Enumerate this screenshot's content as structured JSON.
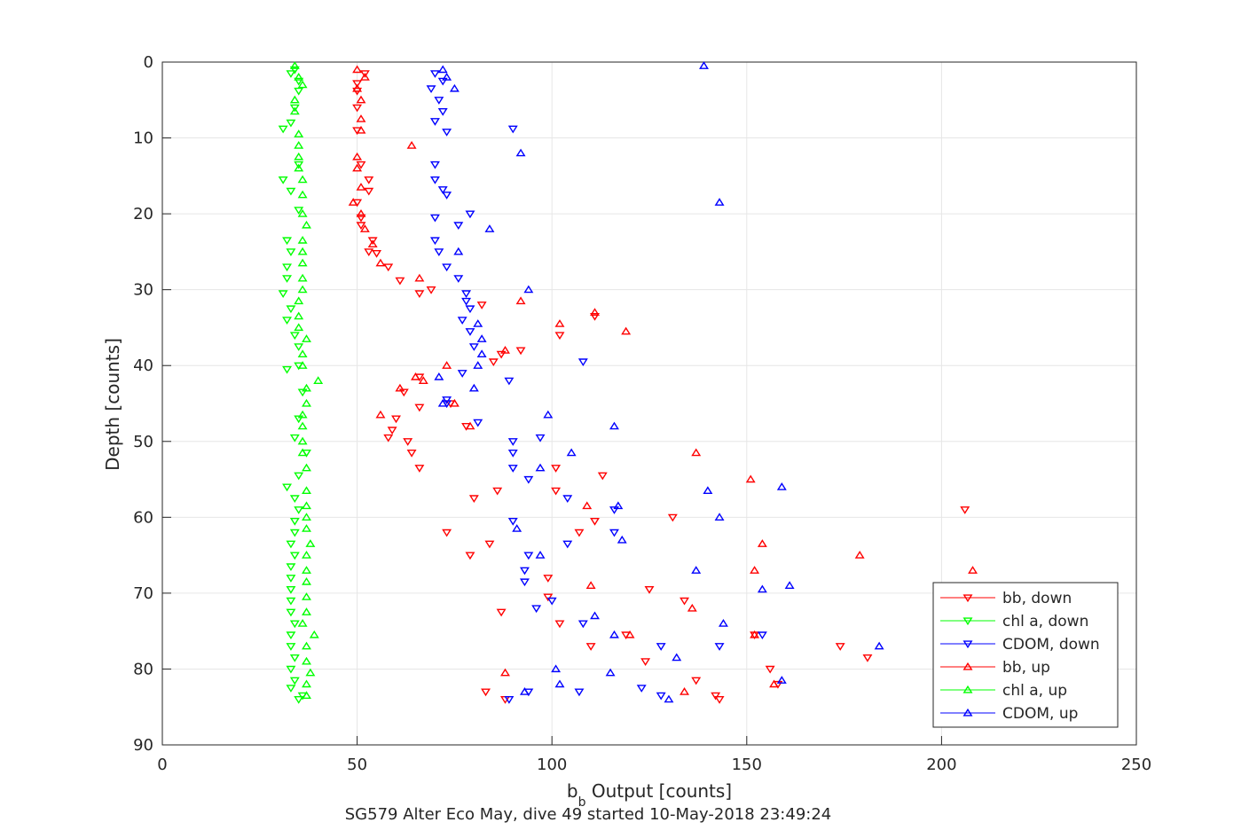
{
  "figure": {
    "caption": "SG579 Alter Eco May, dive 49 started 10-May-2018 23:49:24",
    "background": "#ffffff"
  },
  "chart_data": {
    "type": "scatter",
    "title": "",
    "xlabel_main": "b",
    "xlabel_sub": "b",
    "xlabel_rest": " Output [counts]",
    "ylabel": "Depth [counts]",
    "xlim": [
      0,
      250
    ],
    "ylim": [
      0,
      90
    ],
    "y_reversed": true,
    "grid": true,
    "legend_position": "bottom-right",
    "xticks": [
      0,
      50,
      100,
      150,
      200,
      250
    ],
    "yticks": [
      0,
      10,
      20,
      30,
      40,
      50,
      60,
      70,
      80,
      90
    ],
    "xtick_labels": [
      "0",
      "50",
      "100",
      "150",
      "200",
      "250"
    ],
    "ytick_labels": [
      "0",
      "10",
      "20",
      "30",
      "40",
      "50",
      "60",
      "70",
      "80",
      "90"
    ],
    "series": [
      {
        "name": "bb, down",
        "color": "#ff0000",
        "marker": "triangle-down",
        "points": [
          [
            52,
            1.5
          ],
          [
            50,
            2.8
          ],
          [
            50,
            3.8
          ],
          [
            50,
            6
          ],
          [
            50,
            9
          ],
          [
            51,
            13.5
          ],
          [
            53,
            15.5
          ],
          [
            53,
            17
          ],
          [
            50,
            18.5
          ],
          [
            51,
            20.5
          ],
          [
            51,
            21.5
          ],
          [
            54,
            23.5
          ],
          [
            53,
            25
          ],
          [
            55,
            25.2
          ],
          [
            58,
            27
          ],
          [
            61,
            28.8
          ],
          [
            66,
            30.5
          ],
          [
            69,
            30
          ],
          [
            82,
            32
          ],
          [
            92,
            38
          ],
          [
            87,
            38.5
          ],
          [
            85,
            39.5
          ],
          [
            66,
            41.5
          ],
          [
            62,
            43.5
          ],
          [
            66,
            45.5
          ],
          [
            74,
            45
          ],
          [
            60,
            47
          ],
          [
            59,
            48.5
          ],
          [
            58,
            49.5
          ],
          [
            63,
            50
          ],
          [
            64,
            51.5
          ],
          [
            66,
            53.5
          ],
          [
            101,
            53.5
          ],
          [
            113,
            54.5
          ],
          [
            86,
            56.5
          ],
          [
            101,
            56.5
          ],
          [
            80,
            57.5
          ],
          [
            206,
            59
          ],
          [
            131,
            60
          ],
          [
            111,
            60.5
          ],
          [
            107,
            62
          ],
          [
            73,
            62
          ],
          [
            84,
            63.5
          ],
          [
            79,
            65
          ],
          [
            99,
            68
          ],
          [
            99,
            70.5
          ],
          [
            125,
            69.5
          ],
          [
            134,
            71
          ],
          [
            87,
            72.5
          ],
          [
            102,
            74
          ],
          [
            119,
            75.5
          ],
          [
            110,
            77
          ],
          [
            174,
            77
          ],
          [
            181,
            78.5
          ],
          [
            124,
            79
          ],
          [
            156,
            80
          ],
          [
            137,
            81.5
          ],
          [
            158,
            82
          ],
          [
            142,
            83.5
          ],
          [
            143,
            84
          ],
          [
            83,
            83
          ],
          [
            88,
            84
          ],
          [
            111,
            33.5
          ],
          [
            102,
            36
          ],
          [
            78,
            48
          ],
          [
            152,
            75.5
          ]
        ]
      },
      {
        "name": "chl a, down",
        "color": "#00ff00",
        "marker": "triangle-down",
        "points": [
          [
            34,
            1
          ],
          [
            33,
            1.5
          ],
          [
            35,
            2.5
          ],
          [
            35,
            3.8
          ],
          [
            34,
            6
          ],
          [
            33,
            8
          ],
          [
            31,
            8.8
          ],
          [
            35,
            13.5
          ],
          [
            31,
            15.5
          ],
          [
            33,
            17
          ],
          [
            35,
            19.5
          ],
          [
            32,
            23.5
          ],
          [
            33,
            25
          ],
          [
            32,
            27
          ],
          [
            32,
            28.5
          ],
          [
            31,
            30.5
          ],
          [
            33,
            32.5
          ],
          [
            32,
            34
          ],
          [
            34,
            36
          ],
          [
            35,
            37.5
          ],
          [
            35,
            40
          ],
          [
            32,
            40.5
          ],
          [
            36,
            43.5
          ],
          [
            35,
            47
          ],
          [
            34,
            49.5
          ],
          [
            37,
            51.5
          ],
          [
            35,
            54.5
          ],
          [
            32,
            56
          ],
          [
            34,
            57.5
          ],
          [
            35,
            59
          ],
          [
            34,
            60.5
          ],
          [
            34,
            62
          ],
          [
            33,
            63.5
          ],
          [
            34,
            65
          ],
          [
            33,
            66.5
          ],
          [
            33,
            68
          ],
          [
            33,
            69.5
          ],
          [
            33,
            71
          ],
          [
            33,
            72.5
          ],
          [
            34,
            74
          ],
          [
            33,
            75.5
          ],
          [
            33,
            77
          ],
          [
            34,
            78.5
          ],
          [
            33,
            80
          ],
          [
            34,
            81.5
          ],
          [
            33,
            82.5
          ],
          [
            36,
            83.5
          ],
          [
            35,
            84
          ]
        ]
      },
      {
        "name": "CDOM, down",
        "color": "#0000ff",
        "marker": "triangle-down",
        "points": [
          [
            70,
            1.5
          ],
          [
            72,
            2.5
          ],
          [
            69,
            3.5
          ],
          [
            71,
            5
          ],
          [
            72,
            6.5
          ],
          [
            70,
            7.8
          ],
          [
            73,
            9.2
          ],
          [
            90,
            8.8
          ],
          [
            70,
            13.5
          ],
          [
            70,
            15.5
          ],
          [
            72,
            16.8
          ],
          [
            73,
            17.5
          ],
          [
            79,
            20
          ],
          [
            70,
            20.5
          ],
          [
            76,
            21.5
          ],
          [
            70,
            23.5
          ],
          [
            71,
            25
          ],
          [
            73,
            27
          ],
          [
            76,
            28.5
          ],
          [
            78,
            30.5
          ],
          [
            78,
            31.5
          ],
          [
            79,
            32.5
          ],
          [
            77,
            34
          ],
          [
            79,
            35.5
          ],
          [
            80,
            37.5
          ],
          [
            108,
            39.5
          ],
          [
            77,
            41
          ],
          [
            89,
            42
          ],
          [
            73,
            45
          ],
          [
            73,
            44.5
          ],
          [
            81,
            47.5
          ],
          [
            97,
            49.5
          ],
          [
            90,
            50
          ],
          [
            90,
            51.5
          ],
          [
            90,
            53.5
          ],
          [
            94,
            55
          ],
          [
            104,
            57.5
          ],
          [
            116,
            59
          ],
          [
            90,
            60.5
          ],
          [
            116,
            62
          ],
          [
            104,
            63.5
          ],
          [
            94,
            65
          ],
          [
            93,
            67
          ],
          [
            93,
            68.5
          ],
          [
            100,
            71
          ],
          [
            96,
            72
          ],
          [
            108,
            74
          ],
          [
            128,
            77
          ],
          [
            143,
            77
          ],
          [
            154,
            75.5
          ],
          [
            123,
            82.5
          ],
          [
            107,
            83
          ],
          [
            89,
            84
          ],
          [
            128,
            83.5
          ],
          [
            94,
            83
          ]
        ]
      },
      {
        "name": "bb, up",
        "color": "#ff0000",
        "marker": "triangle-up",
        "points": [
          [
            50,
            1
          ],
          [
            52,
            2
          ],
          [
            50,
            3.5
          ],
          [
            51,
            5
          ],
          [
            51,
            7.5
          ],
          [
            51,
            9
          ],
          [
            64,
            11
          ],
          [
            50,
            12.5
          ],
          [
            50,
            14
          ],
          [
            51,
            16.5
          ],
          [
            49,
            18.5
          ],
          [
            51,
            20
          ],
          [
            52,
            22
          ],
          [
            54,
            24
          ],
          [
            56,
            26.5
          ],
          [
            66,
            28.5
          ],
          [
            92,
            31.5
          ],
          [
            111,
            33
          ],
          [
            102,
            34.5
          ],
          [
            119,
            35.5
          ],
          [
            88,
            38
          ],
          [
            73,
            40
          ],
          [
            67,
            42
          ],
          [
            65,
            41.5
          ],
          [
            61,
            43
          ],
          [
            56,
            46.5
          ],
          [
            137,
            51.5
          ],
          [
            151,
            55
          ],
          [
            109,
            58.5
          ],
          [
            154,
            63.5
          ],
          [
            179,
            65
          ],
          [
            152,
            67
          ],
          [
            208,
            67
          ],
          [
            110,
            69
          ],
          [
            136,
            72
          ],
          [
            120,
            75.5
          ],
          [
            152,
            75.5
          ],
          [
            88,
            80.5
          ],
          [
            134,
            83
          ],
          [
            157,
            82
          ],
          [
            79,
            48
          ],
          [
            75,
            45
          ]
        ]
      },
      {
        "name": "chl a, up",
        "color": "#00ff00",
        "marker": "triangle-up",
        "points": [
          [
            34,
            0.5
          ],
          [
            35,
            2
          ],
          [
            36,
            3
          ],
          [
            34,
            5
          ],
          [
            34,
            6.5
          ],
          [
            35,
            9.5
          ],
          [
            35,
            11
          ],
          [
            35,
            12.5
          ],
          [
            35,
            14
          ],
          [
            36,
            15.5
          ],
          [
            36,
            17.5
          ],
          [
            36,
            20
          ],
          [
            37,
            21.5
          ],
          [
            36,
            23.5
          ],
          [
            36,
            25
          ],
          [
            36,
            26.5
          ],
          [
            36,
            28.5
          ],
          [
            36,
            30
          ],
          [
            35,
            31.5
          ],
          [
            35,
            33.5
          ],
          [
            35,
            35
          ],
          [
            37,
            36.5
          ],
          [
            36,
            38.5
          ],
          [
            36,
            40
          ],
          [
            40,
            42
          ],
          [
            37,
            43
          ],
          [
            37,
            45
          ],
          [
            36,
            46.5
          ],
          [
            36,
            48
          ],
          [
            36,
            50
          ],
          [
            36,
            51.5
          ],
          [
            37,
            53.5
          ],
          [
            37,
            56.5
          ],
          [
            37,
            58.5
          ],
          [
            37,
            60
          ],
          [
            37,
            61.5
          ],
          [
            38,
            63.5
          ],
          [
            37,
            65
          ],
          [
            37,
            67
          ],
          [
            37,
            68.5
          ],
          [
            37,
            70.5
          ],
          [
            37,
            72.5
          ],
          [
            36,
            74
          ],
          [
            39,
            75.5
          ],
          [
            37,
            77
          ],
          [
            37,
            79
          ],
          [
            38,
            80.5
          ],
          [
            37,
            82
          ],
          [
            37,
            83.5
          ]
        ]
      },
      {
        "name": "CDOM, up",
        "color": "#0000ff",
        "marker": "triangle-up",
        "points": [
          [
            139,
            0.5
          ],
          [
            72,
            1
          ],
          [
            73,
            2
          ],
          [
            75,
            3.5
          ],
          [
            92,
            12
          ],
          [
            143,
            18.5
          ],
          [
            84,
            22
          ],
          [
            76,
            25
          ],
          [
            94,
            30
          ],
          [
            81,
            34.5
          ],
          [
            82,
            36.5
          ],
          [
            82,
            38.5
          ],
          [
            81,
            40
          ],
          [
            71,
            41.5
          ],
          [
            80,
            43
          ],
          [
            72,
            45
          ],
          [
            99,
            46.5
          ],
          [
            116,
            48
          ],
          [
            105,
            51.5
          ],
          [
            97,
            53.5
          ],
          [
            140,
            56.5
          ],
          [
            159,
            56
          ],
          [
            117,
            58.5
          ],
          [
            143,
            60
          ],
          [
            91,
            61.5
          ],
          [
            118,
            63
          ],
          [
            97,
            65
          ],
          [
            137,
            67
          ],
          [
            154,
            69.5
          ],
          [
            161,
            69
          ],
          [
            111,
            73
          ],
          [
            144,
            74
          ],
          [
            116,
            75.5
          ],
          [
            184,
            77
          ],
          [
            132,
            78.5
          ],
          [
            101,
            80
          ],
          [
            115,
            80.5
          ],
          [
            159,
            81.5
          ],
          [
            102,
            82
          ],
          [
            93,
            83
          ],
          [
            130,
            84
          ]
        ]
      }
    ]
  }
}
